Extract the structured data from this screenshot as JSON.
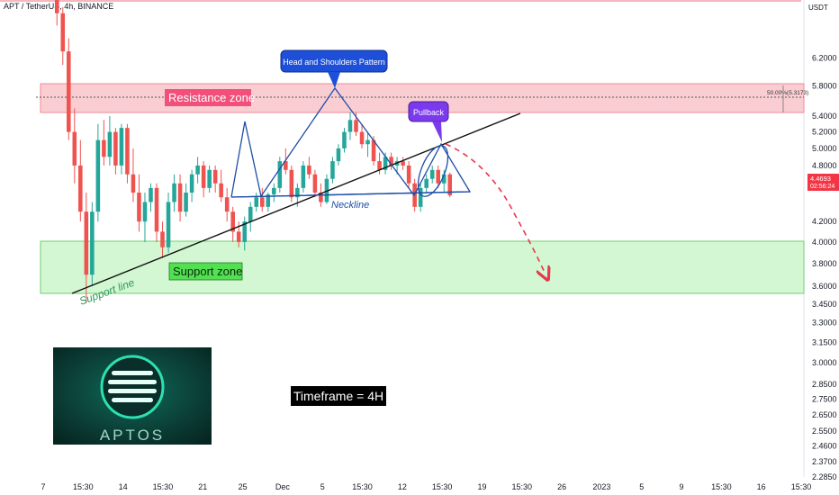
{
  "header": {
    "symbol": "APT / TetherUS, 4h, BINANCE",
    "currency": "USDT"
  },
  "chart_data": {
    "type": "candlestick",
    "y_scale": "log",
    "ylim": [
      2.285,
      7.0
    ],
    "y_ticks": [
      6.2,
      5.8,
      5.4,
      5.2,
      5.0,
      4.8,
      4.6,
      4.2,
      4.0,
      3.8,
      3.6,
      3.45,
      3.3,
      3.15,
      3.0,
      2.85,
      2.75,
      2.65,
      2.55,
      2.46,
      2.37,
      2.285
    ],
    "x_ticks": [
      "7",
      "15:30",
      "14",
      "15:30",
      "21",
      "25",
      "Dec",
      "5",
      "15:30",
      "12",
      "15:30",
      "19",
      "15:30",
      "26",
      "2023",
      "5",
      "9",
      "15:30",
      "16",
      "15:30"
    ],
    "price_tag": {
      "value": "4.4693",
      "countdown": "02:56:24",
      "color": "#f23645"
    },
    "fib_level": {
      "label": "50.00%(5.3173)",
      "value": 5.3173
    },
    "candles": [
      [
        7.2,
        7.6,
        6.7,
        6.9
      ],
      [
        6.9,
        7.0,
        6.1,
        6.3
      ],
      [
        6.3,
        6.5,
        5.1,
        5.2
      ],
      [
        5.2,
        5.5,
        4.6,
        4.8
      ],
      [
        4.8,
        5.1,
        4.2,
        4.3
      ],
      [
        4.3,
        4.5,
        3.46,
        3.7
      ],
      [
        3.7,
        4.4,
        3.6,
        4.3
      ],
      [
        4.3,
        5.3,
        4.2,
        5.1
      ],
      [
        5.1,
        5.35,
        4.8,
        4.9
      ],
      [
        4.9,
        5.4,
        4.8,
        5.2
      ],
      [
        5.2,
        5.25,
        4.7,
        4.8
      ],
      [
        4.8,
        5.3,
        4.7,
        5.25
      ],
      [
        5.25,
        5.3,
        4.6,
        4.7
      ],
      [
        4.7,
        5.0,
        4.4,
        4.5
      ],
      [
        4.5,
        4.7,
        4.1,
        4.2
      ],
      [
        4.2,
        4.5,
        4.0,
        4.4
      ],
      [
        4.4,
        4.6,
        4.3,
        4.55
      ],
      [
        4.55,
        4.6,
        4.0,
        4.1
      ],
      [
        4.1,
        4.2,
        3.85,
        3.95
      ],
      [
        3.95,
        4.5,
        3.9,
        4.4
      ],
      [
        4.4,
        4.7,
        4.3,
        4.6
      ],
      [
        4.6,
        4.7,
        4.2,
        4.3
      ],
      [
        4.3,
        4.6,
        4.25,
        4.5
      ],
      [
        4.5,
        4.75,
        4.4,
        4.7
      ],
      [
        4.7,
        4.9,
        4.6,
        4.8
      ],
      [
        4.8,
        4.85,
        4.45,
        4.55
      ],
      [
        4.55,
        4.8,
        4.5,
        4.75
      ],
      [
        4.75,
        4.8,
        4.5,
        4.6
      ],
      [
        4.6,
        4.75,
        4.4,
        4.45
      ],
      [
        4.45,
        4.55,
        4.2,
        4.3
      ],
      [
        4.3,
        4.35,
        4.0,
        4.1
      ],
      [
        4.1,
        4.2,
        3.95,
        4.0
      ],
      [
        4.0,
        4.25,
        3.92,
        4.2
      ],
      [
        4.2,
        4.4,
        4.1,
        4.35
      ],
      [
        4.35,
        4.5,
        4.3,
        4.45
      ],
      [
        4.45,
        4.55,
        4.3,
        4.35
      ],
      [
        4.35,
        4.5,
        4.3,
        4.48
      ],
      [
        4.48,
        4.6,
        4.4,
        4.55
      ],
      [
        4.55,
        4.9,
        4.5,
        4.85
      ],
      [
        4.85,
        5.0,
        4.7,
        4.75
      ],
      [
        4.75,
        4.8,
        4.4,
        4.45
      ],
      [
        4.45,
        4.6,
        4.35,
        4.55
      ],
      [
        4.55,
        4.85,
        4.5,
        4.8
      ],
      [
        4.8,
        4.9,
        4.65,
        4.7
      ],
      [
        4.7,
        4.75,
        4.45,
        4.5
      ],
      [
        4.5,
        4.6,
        4.35,
        4.4
      ],
      [
        4.4,
        4.7,
        4.38,
        4.65
      ],
      [
        4.65,
        4.9,
        4.6,
        4.85
      ],
      [
        4.85,
        5.05,
        4.8,
        5.0
      ],
      [
        5.0,
        5.25,
        4.95,
        5.2
      ],
      [
        5.2,
        5.45,
        5.1,
        5.35
      ],
      [
        5.35,
        5.45,
        5.15,
        5.2
      ],
      [
        5.2,
        5.3,
        5.0,
        5.05
      ],
      [
        5.05,
        5.2,
        4.9,
        5.1
      ],
      [
        5.1,
        5.15,
        4.8,
        4.85
      ],
      [
        4.85,
        4.95,
        4.7,
        4.75
      ],
      [
        4.75,
        4.95,
        4.7,
        4.9
      ],
      [
        4.9,
        4.95,
        4.75,
        4.8
      ],
      [
        4.8,
        4.9,
        4.7,
        4.85
      ],
      [
        4.85,
        4.9,
        4.75,
        4.8
      ],
      [
        4.8,
        4.85,
        4.55,
        4.6
      ],
      [
        4.6,
        4.65,
        4.3,
        4.35
      ],
      [
        4.35,
        4.6,
        4.3,
        4.55
      ],
      [
        4.55,
        4.7,
        4.5,
        4.65
      ],
      [
        4.65,
        4.8,
        4.6,
        4.75
      ],
      [
        4.75,
        4.8,
        4.55,
        4.6
      ],
      [
        4.6,
        4.75,
        4.5,
        4.7
      ],
      [
        4.7,
        4.72,
        4.45,
        4.47
      ]
    ]
  },
  "annotations": {
    "head_shoulders": "Head and Shoulders Pattern",
    "pullback": "Pullback",
    "resistance": "Resistance zone",
    "support": "Support zone",
    "neckline": "Neckline",
    "support_line": "Support line",
    "timeframe": "Timeframe = 4H"
  },
  "logo": {
    "text": "APTOS"
  },
  "colors": {
    "up": "#26a69a",
    "down": "#ef5350",
    "resistance_zone": "#f7b6bd",
    "support_zone": "#c8f5c8",
    "pattern_line": "#1e4ea8",
    "callout_blue": "#1d4fd8",
    "callout_purple": "#7c3aed",
    "projection": "#e8374e"
  }
}
